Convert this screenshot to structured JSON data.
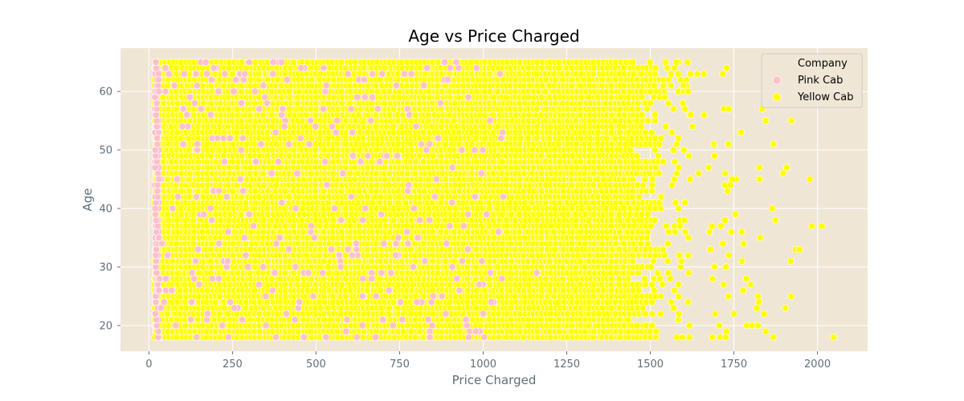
{
  "chart_data": {
    "type": "scatter",
    "title": "Age vs Price Charged",
    "xlabel": "Price Charged",
    "ylabel": "Age",
    "xlim": [
      -85,
      2150
    ],
    "ylim": [
      15.6,
      67.4
    ],
    "xticks": [
      0,
      250,
      500,
      750,
      1000,
      1250,
      1500,
      1750,
      2000
    ],
    "yticks": [
      20,
      30,
      40,
      50,
      60
    ],
    "grid": true,
    "legend": {
      "title": "Company",
      "placement": "top-right",
      "entries": [
        "Pink Cab",
        "Yellow Cab"
      ]
    },
    "series": [
      {
        "name": "Pink Cab",
        "color": "#ffc0cb",
        "description_of_extent": "dense band x 15–1070, y 18–65",
        "points": [
          [
            60,
            63
          ],
          [
            170,
            65
          ],
          [
            260,
            62
          ],
          [
            372,
            65
          ],
          [
            455,
            64
          ],
          [
            330,
            57
          ],
          [
            740,
            61
          ],
          [
            610,
            49
          ],
          [
            830,
            50
          ],
          [
            1050,
            63
          ],
          [
            100,
            54
          ],
          [
            205,
            52
          ],
          [
            480,
            51
          ],
          [
            580,
            46
          ],
          [
            995,
            46
          ],
          [
            142,
            42
          ],
          [
            300,
            39
          ],
          [
            575,
            38
          ],
          [
            810,
            38
          ],
          [
            290,
            32
          ],
          [
            620,
            34
          ],
          [
            140,
            31
          ],
          [
            235,
            31
          ],
          [
            775,
            34
          ],
          [
            900,
            37
          ],
          [
            50,
            28
          ],
          [
            190,
            28
          ],
          [
            370,
            26
          ],
          [
            640,
            28
          ],
          [
            1160,
            29
          ],
          [
            45,
            24
          ],
          [
            255,
            23
          ],
          [
            350,
            25
          ],
          [
            450,
            24
          ],
          [
            1000,
            22
          ],
          [
            80,
            20
          ],
          [
            238,
            18
          ],
          [
            380,
            18
          ],
          [
            700,
            21
          ],
          [
            840,
            18
          ],
          [
            30,
            45
          ],
          [
            30,
            35
          ],
          [
            30,
            26
          ],
          [
            30,
            60
          ],
          [
            25,
            52
          ]
        ]
      },
      {
        "name": "Yellow Cab",
        "color": "#ffff00",
        "outliers": [
          [
            1578,
            65
          ],
          [
            1641,
            63
          ],
          [
            1660,
            63
          ],
          [
            1717,
            63
          ],
          [
            1728,
            64
          ],
          [
            1607,
            62
          ],
          [
            1599,
            61
          ],
          [
            1613,
            60
          ],
          [
            1720,
            57
          ],
          [
            1735,
            57
          ],
          [
            1835,
            57
          ],
          [
            1845,
            55
          ],
          [
            1922,
            55
          ],
          [
            1621,
            56
          ],
          [
            1661,
            56
          ],
          [
            1771,
            53
          ],
          [
            1626,
            54
          ],
          [
            1868,
            51
          ],
          [
            1734,
            51
          ],
          [
            1690,
            51
          ],
          [
            1692,
            49
          ],
          [
            1675,
            47
          ],
          [
            1645,
            46
          ],
          [
            1724,
            46
          ],
          [
            1757,
            45
          ],
          [
            1745,
            45
          ],
          [
            1826,
            45
          ],
          [
            1897,
            46
          ],
          [
            1908,
            47
          ],
          [
            1826,
            47
          ],
          [
            1977,
            45
          ],
          [
            1724,
            44
          ],
          [
            1740,
            44
          ],
          [
            1731,
            43
          ],
          [
            1865,
            40
          ],
          [
            1755,
            39
          ],
          [
            1874,
            38
          ],
          [
            1724,
            38
          ],
          [
            1684,
            37
          ],
          [
            1712,
            37
          ],
          [
            1677,
            36
          ],
          [
            1742,
            36
          ],
          [
            1774,
            36
          ],
          [
            1983,
            37
          ],
          [
            2013,
            37
          ],
          [
            1829,
            35
          ],
          [
            1717,
            34
          ],
          [
            1779,
            34
          ],
          [
            1680,
            33
          ],
          [
            1935,
            33
          ],
          [
            1947,
            33
          ],
          [
            1735,
            32
          ],
          [
            1692,
            30
          ],
          [
            1726,
            30
          ],
          [
            1774,
            31
          ],
          [
            1920,
            31
          ],
          [
            1686,
            28
          ],
          [
            1787,
            28
          ],
          [
            1719,
            27
          ],
          [
            1778,
            26
          ],
          [
            1800,
            27
          ],
          [
            1734,
            25
          ],
          [
            1822,
            25
          ],
          [
            1921,
            25
          ],
          [
            1825,
            24
          ],
          [
            1818,
            23
          ],
          [
            1840,
            22
          ],
          [
            1904,
            23
          ],
          [
            1694,
            22
          ],
          [
            1750,
            22
          ],
          [
            1706,
            20
          ],
          [
            1789,
            20
          ],
          [
            1805,
            20
          ],
          [
            1822,
            20
          ],
          [
            1727,
            19
          ],
          [
            1845,
            19
          ],
          [
            1685,
            18
          ],
          [
            1709,
            18
          ],
          [
            1725,
            18
          ],
          [
            1868,
            18
          ],
          [
            2048,
            18
          ],
          [
            1617,
            18
          ],
          [
            1596,
            18
          ]
        ]
      }
    ]
  }
}
